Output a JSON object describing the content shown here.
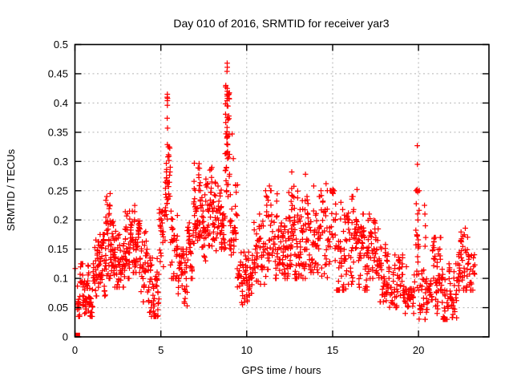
{
  "chart_data": {
    "type": "scatter",
    "title": "Day 010 of 2016, SRMTID for receiver yar3",
    "xlabel": "GPS time / hours",
    "ylabel": "SRMTID / TECUs",
    "xlim": [
      0,
      24.1
    ],
    "ylim": [
      0,
      0.5
    ],
    "xticks": [
      0,
      5,
      10,
      15,
      20
    ],
    "xtick_labels": [
      "0",
      "5",
      "10",
      "15",
      "20"
    ],
    "yticks": [
      0,
      0.05,
      0.1,
      0.15,
      0.2,
      0.25,
      0.3,
      0.35,
      0.4,
      0.45,
      0.5
    ],
    "ytick_labels": [
      "0",
      "0.05",
      "0.1",
      "0.15",
      "0.2",
      "0.25",
      "0.3",
      "0.35",
      "0.4",
      "0.45",
      "0.5"
    ],
    "grid": "dotted",
    "legend": "none",
    "marker": "plus",
    "marker_color": "#ff0000",
    "grid_color": "#b3b3b3",
    "border_color": "#000000",
    "background_color": "#ffffff",
    "seed": 42,
    "series_note": "dense 30s-sampled time series rendered as + markers; segments = [t_start_h, t_end_h, n_points, y_min_TECU, y_max_TECU]",
    "segments": [
      [
        0.12,
        1.15,
        85,
        0.035,
        0.125
      ],
      [
        1.15,
        1.8,
        60,
        0.07,
        0.175
      ],
      [
        1.8,
        2.3,
        55,
        0.1,
        0.24
      ],
      [
        2.3,
        2.9,
        50,
        0.085,
        0.185
      ],
      [
        2.9,
        3.4,
        45,
        0.1,
        0.215
      ],
      [
        3.4,
        3.8,
        40,
        0.11,
        0.225
      ],
      [
        3.8,
        4.3,
        40,
        0.06,
        0.18
      ],
      [
        4.3,
        4.9,
        55,
        0.035,
        0.135
      ],
      [
        4.9,
        5.25,
        30,
        0.12,
        0.235
      ],
      [
        5.25,
        5.55,
        42,
        0.19,
        0.325
      ],
      [
        5.55,
        6.0,
        32,
        0.1,
        0.215
      ],
      [
        6.0,
        6.55,
        45,
        0.05,
        0.15
      ],
      [
        6.55,
        6.9,
        30,
        0.1,
        0.21
      ],
      [
        6.9,
        7.35,
        48,
        0.16,
        0.305
      ],
      [
        7.35,
        7.8,
        40,
        0.13,
        0.27
      ],
      [
        7.8,
        8.35,
        48,
        0.14,
        0.29
      ],
      [
        8.35,
        8.75,
        35,
        0.15,
        0.26
      ],
      [
        8.75,
        9.0,
        40,
        0.24,
        0.43
      ],
      [
        9.0,
        9.45,
        35,
        0.14,
        0.26
      ],
      [
        9.45,
        10.35,
        70,
        0.055,
        0.145
      ],
      [
        10.35,
        11.1,
        55,
        0.09,
        0.21
      ],
      [
        11.1,
        11.8,
        55,
        0.1,
        0.25
      ],
      [
        11.8,
        12.4,
        50,
        0.1,
        0.22
      ],
      [
        12.4,
        12.8,
        38,
        0.12,
        0.26
      ],
      [
        12.8,
        13.45,
        50,
        0.1,
        0.26
      ],
      [
        13.45,
        14.3,
        60,
        0.11,
        0.24
      ],
      [
        14.3,
        15.1,
        55,
        0.09,
        0.25
      ],
      [
        15.1,
        15.8,
        50,
        0.08,
        0.23
      ],
      [
        15.8,
        16.55,
        55,
        0.09,
        0.24
      ],
      [
        16.55,
        17.25,
        55,
        0.08,
        0.21
      ],
      [
        17.25,
        17.75,
        40,
        0.1,
        0.22
      ],
      [
        17.75,
        18.3,
        40,
        0.06,
        0.16
      ],
      [
        18.3,
        19.1,
        45,
        0.05,
        0.14
      ],
      [
        19.1,
        19.8,
        35,
        0.04,
        0.12
      ],
      [
        19.85,
        20.05,
        25,
        0.08,
        0.25
      ],
      [
        20.05,
        20.8,
        55,
        0.03,
        0.115
      ],
      [
        20.8,
        21.4,
        50,
        0.04,
        0.17
      ],
      [
        21.4,
        22.3,
        65,
        0.03,
        0.125
      ],
      [
        22.3,
        22.85,
        45,
        0.08,
        0.2
      ],
      [
        22.85,
        23.3,
        25,
        0.08,
        0.165
      ]
    ],
    "outliers": [
      [
        0.02,
        0.117
      ],
      [
        5.38,
        0.415
      ],
      [
        5.37,
        0.41
      ],
      [
        5.39,
        0.408
      ],
      [
        5.38,
        0.404
      ],
      [
        5.38,
        0.396
      ],
      [
        5.37,
        0.374
      ],
      [
        5.39,
        0.357
      ],
      [
        5.38,
        0.329
      ],
      [
        8.86,
        0.468
      ],
      [
        8.87,
        0.461
      ],
      [
        8.85,
        0.454
      ],
      [
        8.86,
        0.425
      ],
      [
        8.87,
        0.42
      ],
      [
        8.85,
        0.415
      ],
      [
        8.86,
        0.412
      ],
      [
        8.88,
        0.408
      ],
      [
        8.85,
        0.404
      ],
      [
        8.86,
        0.395
      ],
      [
        8.87,
        0.375
      ],
      [
        8.85,
        0.351
      ],
      [
        8.87,
        0.342
      ],
      [
        8.86,
        0.315
      ],
      [
        9.15,
        0.347
      ],
      [
        9.22,
        0.305
      ],
      [
        2.05,
        0.245
      ],
      [
        11.32,
        0.258
      ],
      [
        12.62,
        0.282
      ],
      [
        13.42,
        0.278
      ],
      [
        13.9,
        0.258
      ],
      [
        14.62,
        0.262
      ],
      [
        15.02,
        0.252
      ],
      [
        16.42,
        0.252
      ],
      [
        19.93,
        0.327
      ],
      [
        19.94,
        0.295
      ],
      [
        19.92,
        0.252
      ],
      [
        19.95,
        0.248
      ],
      [
        20.35,
        0.225
      ],
      [
        20.37,
        0.21
      ],
      [
        20.4,
        0.19
      ],
      [
        20.42,
        0.17
      ],
      [
        20.38,
        0.155
      ]
    ],
    "square_point": [
      0.16,
      0.003
    ]
  }
}
